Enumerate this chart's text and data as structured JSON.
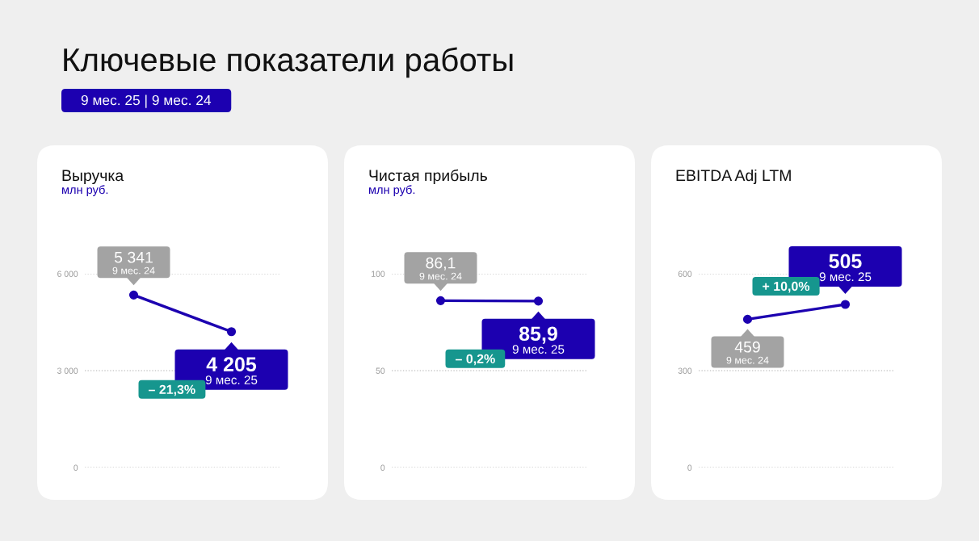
{
  "chart_data": [
    {
      "type": "other",
      "title": "Ключевые показатели работы",
      "subtitle": "9 мес. 25 | 9 мес. 24"
    },
    {
      "type": "line",
      "title": "Выручка",
      "subtitle": "млн руб.",
      "categories": [
        "9 мес. 24",
        "9 мес. 25"
      ],
      "values": [
        5341,
        4205
      ],
      "value_labels": [
        "5 341",
        "4 205"
      ],
      "color": "#1c00b0",
      "marker": "circle",
      "line_style": "solid",
      "ylim": [
        0,
        6000
      ],
      "yticks": [
        0,
        {
          "value": 3000,
          "label": "3 000"
        },
        {
          "value": 6000,
          "label": "6 000"
        }
      ],
      "grid": "y",
      "tick_labels": "y",
      "annotations": [
        "– 21,3%"
      ]
    },
    {
      "type": "line",
      "title": "Чистая прибыль",
      "subtitle": "млн руб.",
      "categories": [
        "9 мес. 24",
        "9 мес. 25"
      ],
      "values": [
        86.1,
        85.9
      ],
      "value_labels": [
        "86,1",
        "85,9"
      ],
      "color": "#1c00b0",
      "marker": "circle",
      "line_style": "solid",
      "ylim": [
        0,
        100
      ],
      "yticks": [
        0,
        50,
        100
      ],
      "grid": "y",
      "tick_labels": "y",
      "annotations": [
        "– 0,2%"
      ]
    },
    {
      "type": "line",
      "title": "EBITDA Adj LTM",
      "categories": [
        "9 мес. 24",
        "9 мес. 25"
      ],
      "values": [
        459,
        505
      ],
      "value_labels": [
        "459",
        "505"
      ],
      "color": "#1c00b0",
      "marker": "circle",
      "line_style": "solid",
      "ylim": [
        0,
        600
      ],
      "yticks": [
        0,
        300,
        600
      ],
      "grid": "y",
      "tick_labels": "y",
      "annotations": [
        "+ 10,0%"
      ]
    }
  ]
}
